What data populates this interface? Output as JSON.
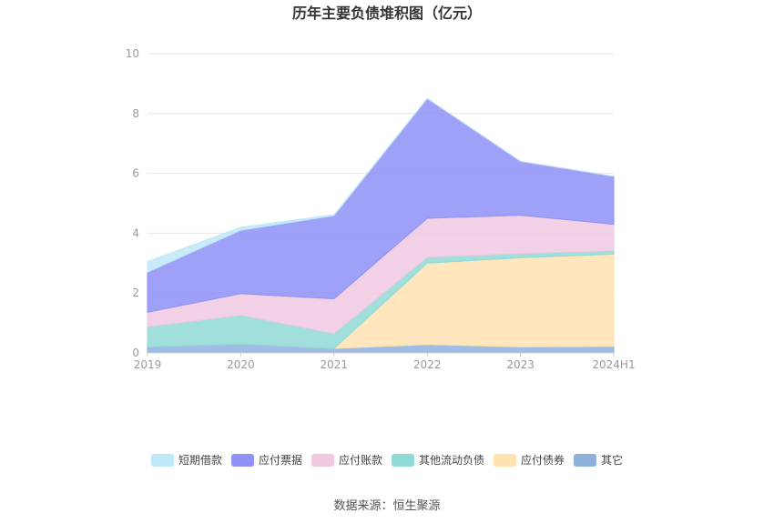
{
  "chart_data": {
    "type": "area",
    "stacked": true,
    "title": "历年主要负债堆积图（亿元）",
    "categories": [
      "2019",
      "2020",
      "2021",
      "2022",
      "2023",
      "2024H1"
    ],
    "yticks": [
      "0",
      "2",
      "4",
      "6",
      "8",
      "10"
    ],
    "ylim": [
      0,
      10
    ],
    "grid": true,
    "legend_position": "bottom",
    "series": [
      {
        "name": "其它",
        "color": "#8fb0dd",
        "values": [
          0.2,
          0.3,
          0.15,
          0.28,
          0.2,
          0.22
        ]
      },
      {
        "name": "应付债券",
        "color": "#ffe2b0",
        "values": [
          0,
          0,
          0,
          2.72,
          2.98,
          3.08
        ]
      },
      {
        "name": "其他流动负债",
        "color": "#8fd9d6",
        "values": [
          0.68,
          0.96,
          0.5,
          0.2,
          0.14,
          0.12
        ]
      },
      {
        "name": "应付账款",
        "color": "#f0c8e2",
        "values": [
          0.48,
          0.72,
          1.16,
          1.3,
          1.28,
          0.88
        ]
      },
      {
        "name": "应付票据",
        "color": "#8e91f7",
        "values": [
          1.34,
          2.12,
          2.78,
          4.0,
          1.8,
          1.6
        ]
      },
      {
        "name": "短期借款",
        "color": "#bfe8f8",
        "values": [
          0.35,
          0.1,
          0.03,
          0,
          0,
          0
        ]
      }
    ],
    "legend_order": [
      "短期借款",
      "应付票据",
      "应付账款",
      "其他流动负债",
      "应付债券",
      "其它"
    ]
  },
  "source": "数据来源：恒生聚源"
}
